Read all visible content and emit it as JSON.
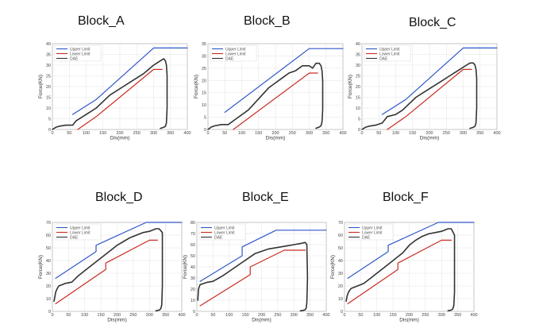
{
  "chart_data": [
    {
      "type": "line",
      "title": "Block_A",
      "xlabel": "Dis(mm)",
      "ylabel": "Force(KN)",
      "xlim": [
        0,
        400
      ],
      "ylim": [
        0,
        40
      ],
      "xticks": [
        0,
        50,
        100,
        150,
        200,
        250,
        300,
        350,
        400
      ],
      "yticks": [
        0,
        5,
        10,
        15,
        20,
        25,
        30,
        35,
        40
      ],
      "grid": true,
      "legend_position": "top-left",
      "series": [
        {
          "name": "Upper Limit",
          "color": "#2f58c9",
          "x": [
            60,
            130,
            300,
            400
          ],
          "y": [
            7,
            14,
            38,
            38
          ]
        },
        {
          "name": "Lower Limit",
          "color": "#cc2b22",
          "x": [
            75,
            130,
            300,
            325
          ],
          "y": [
            0,
            6,
            28,
            28
          ]
        },
        {
          "name": "DAE",
          "color": "#333333",
          "x": [
            0,
            10,
            20,
            40,
            60,
            70,
            90,
            110,
            130,
            150,
            170,
            190,
            210,
            230,
            250,
            270,
            285,
            300,
            310,
            320,
            330,
            335,
            338,
            340,
            340,
            338,
            335,
            330,
            320
          ],
          "y": [
            0,
            1,
            1.5,
            2,
            2,
            4,
            6,
            8,
            10,
            13,
            16,
            18,
            20,
            22,
            24,
            26,
            28,
            30,
            31,
            32,
            33,
            32,
            30,
            25,
            10,
            3,
            1.5,
            1,
            0.5
          ]
        }
      ]
    },
    {
      "type": "line",
      "title": "Block_B",
      "xlabel": "Dis(mm)",
      "ylabel": "Force(KN)",
      "xlim": [
        0,
        400
      ],
      "ylim": [
        0,
        35
      ],
      "xticks": [
        0,
        50,
        100,
        150,
        200,
        250,
        300,
        350,
        400
      ],
      "yticks": [
        0,
        5,
        10,
        15,
        20,
        25,
        30,
        35
      ],
      "grid": true,
      "legend_position": "top-left",
      "series": [
        {
          "name": "Upper Limit",
          "color": "#2f58c9",
          "x": [
            50,
            300,
            400
          ],
          "y": [
            7,
            33,
            33
          ]
        },
        {
          "name": "Lower Limit",
          "color": "#cc2b22",
          "x": [
            75,
            300,
            325
          ],
          "y": [
            0,
            23,
            23
          ]
        },
        {
          "name": "DAE",
          "color": "#333333",
          "x": [
            0,
            10,
            20,
            40,
            60,
            80,
            100,
            120,
            140,
            160,
            180,
            200,
            220,
            240,
            260,
            280,
            300,
            310,
            320,
            330,
            335,
            338,
            340,
            340,
            338,
            335,
            330,
            320
          ],
          "y": [
            0,
            1,
            1.5,
            2,
            2,
            4,
            6,
            8,
            11,
            14,
            17,
            19,
            21,
            23,
            24,
            26,
            26,
            25,
            27,
            27,
            26,
            24,
            20,
            8,
            3,
            1.5,
            1,
            0.5
          ]
        }
      ]
    },
    {
      "type": "line",
      "title": "Block_C",
      "xlabel": "Dis(mm)",
      "ylabel": "Force(KN)",
      "xlim": [
        0,
        400
      ],
      "ylim": [
        0,
        40
      ],
      "xticks": [
        0,
        50,
        100,
        150,
        200,
        250,
        300,
        350,
        400
      ],
      "yticks": [
        0,
        5,
        10,
        15,
        20,
        25,
        30,
        35,
        40
      ],
      "grid": true,
      "legend_position": "top-left",
      "series": [
        {
          "name": "Upper Limit",
          "color": "#2f58c9",
          "x": [
            60,
            130,
            300,
            400
          ],
          "y": [
            7,
            14,
            38,
            38
          ]
        },
        {
          "name": "Lower Limit",
          "color": "#cc2b22",
          "x": [
            75,
            130,
            300,
            325
          ],
          "y": [
            0,
            6,
            28,
            28
          ]
        },
        {
          "name": "DAE",
          "color": "#333333",
          "x": [
            0,
            10,
            20,
            40,
            60,
            75,
            100,
            120,
            140,
            160,
            180,
            200,
            220,
            240,
            260,
            280,
            300,
            310,
            320,
            330,
            335,
            338,
            340,
            340,
            338,
            335,
            330,
            320
          ],
          "y": [
            0,
            1,
            1.5,
            2,
            3,
            6,
            7,
            9,
            12,
            15,
            17,
            19,
            21,
            23,
            25,
            27,
            29,
            30,
            31,
            31,
            30,
            28,
            24,
            10,
            3,
            1.5,
            1,
            0.5
          ]
        }
      ]
    },
    {
      "type": "line",
      "title": "Block_D",
      "xlabel": "Dis(mm)",
      "ylabel": "Force(KN)",
      "xlim": [
        0,
        400
      ],
      "ylim": [
        0,
        70
      ],
      "xticks": [
        0,
        50,
        100,
        150,
        200,
        250,
        300,
        350,
        400
      ],
      "yticks": [
        0,
        10,
        20,
        30,
        40,
        50,
        60,
        70
      ],
      "grid": true,
      "legend_position": "top-left",
      "series": [
        {
          "name": "Upper Limit",
          "color": "#2f58c9",
          "x": [
            10,
            135,
            135,
            290,
            400
          ],
          "y": [
            26,
            47,
            52,
            70,
            70
          ]
        },
        {
          "name": "Lower Limit",
          "color": "#cc2b22",
          "x": [
            10,
            165,
            165,
            300,
            325
          ],
          "y": [
            6,
            33,
            38,
            56,
            56
          ]
        },
        {
          "name": "DAE",
          "color": "#333333",
          "x": [
            5,
            8,
            10,
            15,
            20,
            40,
            60,
            80,
            100,
            120,
            140,
            160,
            180,
            200,
            220,
            240,
            260,
            280,
            300,
            310,
            320,
            330,
            340,
            340,
            338,
            335,
            330,
            320
          ],
          "y": [
            8,
            12,
            15,
            18,
            20,
            22,
            23,
            28,
            32,
            36,
            40,
            44,
            48,
            52,
            55,
            58,
            60,
            62,
            63,
            64,
            65,
            65,
            62,
            20,
            5,
            2,
            1,
            0.5
          ]
        }
      ]
    },
    {
      "type": "line",
      "title": "Block_E",
      "xlabel": "Dis(mm)",
      "ylabel": "Force(KN)",
      "xlim": [
        0,
        400
      ],
      "ylim": [
        0,
        80
      ],
      "xticks": [
        0,
        50,
        100,
        150,
        200,
        250,
        300,
        350,
        400
      ],
      "yticks": [
        0,
        10,
        20,
        30,
        40,
        50,
        60,
        70,
        80
      ],
      "grid": true,
      "legend_position": "top-left",
      "series": [
        {
          "name": "Upper Limit",
          "color": "#2f58c9",
          "x": [
            10,
            140,
            140,
            245,
            400
          ],
          "y": [
            27,
            50,
            58,
            73,
            73
          ]
        },
        {
          "name": "Lower Limit",
          "color": "#cc2b22",
          "x": [
            10,
            165,
            165,
            270,
            335
          ],
          "y": [
            5,
            33,
            40,
            55,
            55
          ]
        },
        {
          "name": "DAE",
          "color": "#333333",
          "x": [
            3,
            5,
            10,
            20,
            30,
            50,
            80,
            100,
            120,
            140,
            160,
            180,
            200,
            220,
            240,
            260,
            280,
            300,
            320,
            335,
            340,
            342,
            340,
            338,
            335,
            330,
            320
          ],
          "y": [
            10,
            20,
            24,
            25,
            26,
            27,
            32,
            36,
            40,
            44,
            48,
            52,
            54,
            56,
            57,
            58,
            59,
            60,
            61,
            62,
            60,
            30,
            8,
            3,
            1.5,
            1,
            0.5
          ]
        }
      ]
    },
    {
      "type": "line",
      "title": "Block_F",
      "xlabel": "Dis(mm)",
      "ylabel": "Force(KN)",
      "xlim": [
        0,
        400
      ],
      "ylim": [
        0,
        70
      ],
      "xticks": [
        0,
        50,
        100,
        150,
        200,
        250,
        300,
        350,
        400
      ],
      "yticks": [
        0,
        10,
        20,
        30,
        40,
        50,
        60,
        70
      ],
      "grid": true,
      "legend_position": "top-left",
      "series": [
        {
          "name": "Upper Limit",
          "color": "#2f58c9",
          "x": [
            10,
            135,
            135,
            290,
            400
          ],
          "y": [
            26,
            47,
            52,
            70,
            70
          ]
        },
        {
          "name": "Lower Limit",
          "color": "#cc2b22",
          "x": [
            10,
            165,
            165,
            300,
            330
          ],
          "y": [
            6,
            33,
            38,
            56,
            56
          ]
        },
        {
          "name": "DAE",
          "color": "#333333",
          "x": [
            5,
            8,
            12,
            20,
            40,
            60,
            80,
            100,
            120,
            140,
            160,
            180,
            200,
            220,
            240,
            260,
            280,
            300,
            310,
            320,
            330,
            340,
            340,
            338,
            335,
            330,
            320
          ],
          "y": [
            8,
            12,
            15,
            18,
            20,
            22,
            26,
            30,
            34,
            38,
            42,
            46,
            52,
            56,
            59,
            61,
            62,
            63,
            64,
            65,
            65,
            60,
            15,
            5,
            2,
            1,
            0.5
          ]
        }
      ]
    }
  ]
}
